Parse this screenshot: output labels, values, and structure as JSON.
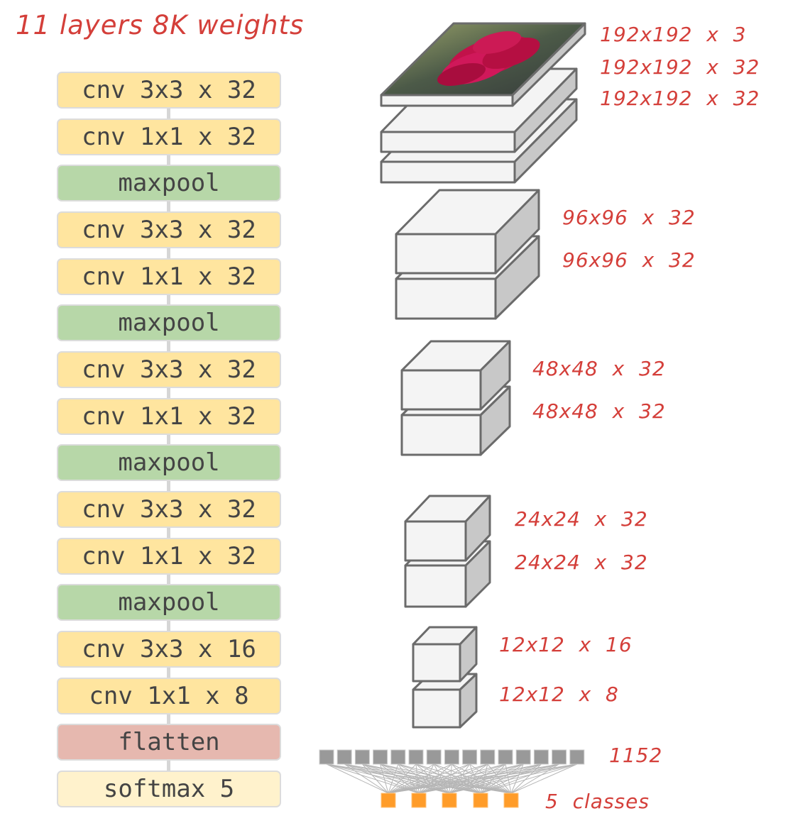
{
  "title": "11 layers 8K weights",
  "layers": [
    {
      "label": "cnv 3x3 x 32",
      "type": "conv"
    },
    {
      "label": "cnv 1x1 x 32",
      "type": "conv"
    },
    {
      "label": "maxpool",
      "type": "pool"
    },
    {
      "label": "cnv 3x3 x 32",
      "type": "conv"
    },
    {
      "label": "cnv 1x1 x 32",
      "type": "conv"
    },
    {
      "label": "maxpool",
      "type": "pool"
    },
    {
      "label": "cnv 3x3 x 32",
      "type": "conv"
    },
    {
      "label": "cnv 1x1 x 32",
      "type": "conv"
    },
    {
      "label": "maxpool",
      "type": "pool"
    },
    {
      "label": "cnv 3x3 x 32",
      "type": "conv"
    },
    {
      "label": "cnv 1x1 x 32",
      "type": "conv"
    },
    {
      "label": "maxpool",
      "type": "pool"
    },
    {
      "label": "cnv 3x3 x 16",
      "type": "conv"
    },
    {
      "label": "cnv 1x1 x 8",
      "type": "conv"
    },
    {
      "label": "flatten",
      "type": "flat"
    },
    {
      "label": "softmax 5",
      "type": "soft"
    }
  ],
  "shape_labels": [
    "192x192  x  3",
    "192x192  x  32",
    "192x192  x  32",
    "96x96  x  32",
    "96x96  x  32",
    "48x48  x  32",
    "48x48  x  32",
    "24x24  x  32",
    "24x24  x  32",
    "12x12  x  16",
    "12x12  x  8"
  ],
  "dense_label": "1152",
  "output_label": "5  classes",
  "colors": {
    "conv": "#ffe59f",
    "pool": "#b7d7a8",
    "flatten": "#e6b8af",
    "softmax": "#fff2cc",
    "annotation": "#d43f3a",
    "dense_node": "#999999",
    "output_node": "#ff9c29"
  }
}
